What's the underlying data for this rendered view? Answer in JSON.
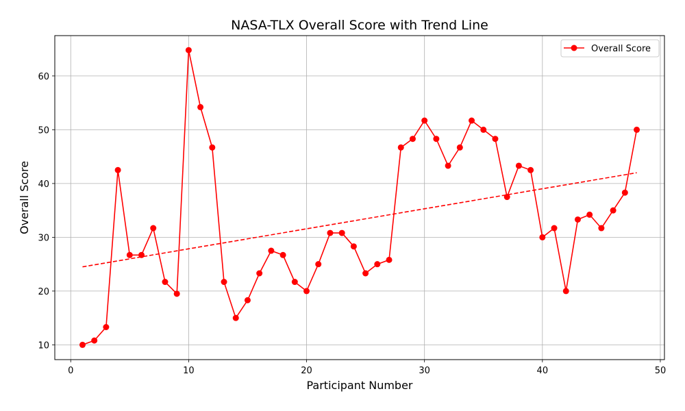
{
  "chart_data": {
    "type": "line",
    "title": "NASA-TLX Overall Score with Trend Line",
    "xlabel": "Participant Number",
    "ylabel": "Overall Score",
    "xlim": [
      -1.35,
      50.35
    ],
    "ylim": [
      7.25,
      67.5
    ],
    "xticks": [
      0,
      10,
      20,
      30,
      40,
      50
    ],
    "yticks": [
      10,
      20,
      30,
      40,
      50,
      60
    ],
    "grid": true,
    "legend_position": "top-right",
    "series": [
      {
        "name": "Overall Score",
        "color": "#ff0000",
        "marker": "circle",
        "x": [
          1,
          2,
          3,
          4,
          5,
          6,
          7,
          8,
          9,
          10,
          11,
          12,
          13,
          14,
          15,
          16,
          17,
          18,
          19,
          20,
          21,
          22,
          23,
          24,
          25,
          26,
          27,
          28,
          29,
          30,
          31,
          32,
          33,
          34,
          35,
          36,
          37,
          38,
          39,
          40,
          41,
          42,
          43,
          44,
          45,
          46,
          47,
          48
        ],
        "values": [
          10.0,
          10.8,
          13.3,
          42.5,
          26.7,
          26.7,
          31.7,
          21.7,
          19.5,
          64.8,
          54.2,
          46.7,
          21.7,
          15.0,
          18.3,
          23.3,
          27.5,
          26.7,
          21.7,
          20.0,
          25.0,
          30.8,
          30.8,
          28.3,
          23.3,
          25.0,
          25.8,
          46.7,
          48.3,
          51.7,
          48.3,
          43.3,
          46.7,
          51.7,
          50.0,
          48.3,
          37.5,
          43.3,
          42.5,
          30.0,
          31.7,
          20.0,
          33.3,
          34.2,
          31.7,
          35.0,
          38.3,
          50.0
        ]
      }
    ],
    "trend_line": {
      "style": "dashed",
      "color": "#ff0000",
      "x": [
        1,
        48
      ],
      "values": [
        24.5,
        42.0
      ]
    }
  }
}
